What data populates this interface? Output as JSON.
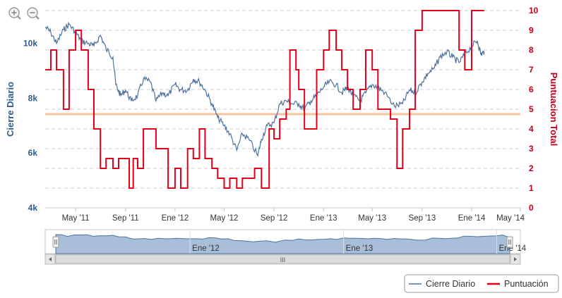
{
  "zoom_controls": {
    "zoom_in": "zoom-in",
    "zoom_out": "zoom-out"
  },
  "chart_data": {
    "type": "line",
    "title": "",
    "x_axis": {
      "type": "date",
      "range": [
        "2011-02-15",
        "2014-05-01"
      ],
      "tick_labels": [
        "May '11",
        "Sep '11",
        "Ene '12",
        "May '12",
        "Sep '12",
        "Ene '13",
        "May '13",
        "Sep '13",
        "Ene '14",
        "May '14"
      ],
      "tick_dates": [
        "2011-05-01",
        "2011-09-01",
        "2012-01-01",
        "2012-05-01",
        "2012-09-01",
        "2013-01-01",
        "2013-05-01",
        "2013-09-01",
        "2014-01-01",
        "2014-05-01"
      ]
    },
    "y_left": {
      "label": "Cierre Diario",
      "range": [
        4000,
        11200
      ],
      "ticks": [
        4000,
        6000,
        8000,
        10000
      ],
      "tick_labels": [
        "4k",
        "6k",
        "8k",
        "10k"
      ]
    },
    "y_right": {
      "label": "Puntuacion Total",
      "range": [
        0,
        10
      ],
      "ticks": [
        0,
        1,
        2,
        3,
        4,
        5,
        6,
        7,
        8,
        9,
        10
      ]
    },
    "grid": "dashed-horizontal",
    "threshold_line": {
      "axis": "right",
      "value": 4.75,
      "color": "#f4c39f"
    },
    "series": [
      {
        "name": "Cierre Diario",
        "axis": "left",
        "color": "#4c72a0",
        "points": [
          [
            "2011-02-15",
            10600
          ],
          [
            "2011-03-01",
            10400
          ],
          [
            "2011-03-15",
            10000
          ],
          [
            "2011-04-01",
            10500
          ],
          [
            "2011-04-15",
            10700
          ],
          [
            "2011-05-01",
            10400
          ],
          [
            "2011-05-15",
            10100
          ],
          [
            "2011-06-01",
            10000
          ],
          [
            "2011-06-15",
            9900
          ],
          [
            "2011-07-01",
            10300
          ],
          [
            "2011-07-15",
            9800
          ],
          [
            "2011-08-01",
            9500
          ],
          [
            "2011-08-08",
            8500
          ],
          [
            "2011-08-20",
            8100
          ],
          [
            "2011-09-01",
            8300
          ],
          [
            "2011-09-15",
            7900
          ],
          [
            "2011-10-01",
            8100
          ],
          [
            "2011-10-15",
            8700
          ],
          [
            "2011-11-01",
            8600
          ],
          [
            "2011-11-15",
            7900
          ],
          [
            "2011-12-01",
            8200
          ],
          [
            "2011-12-15",
            8100
          ],
          [
            "2012-01-01",
            8500
          ],
          [
            "2012-01-15",
            8300
          ],
          [
            "2012-02-01",
            8300
          ],
          [
            "2012-02-15",
            8700
          ],
          [
            "2012-03-01",
            8600
          ],
          [
            "2012-03-15",
            8300
          ],
          [
            "2012-04-01",
            7800
          ],
          [
            "2012-04-15",
            7300
          ],
          [
            "2012-05-01",
            7000
          ],
          [
            "2012-05-15",
            6700
          ],
          [
            "2012-06-01",
            6100
          ],
          [
            "2012-06-15",
            6700
          ],
          [
            "2012-07-01",
            6500
          ],
          [
            "2012-07-23",
            5900
          ],
          [
            "2012-08-01",
            6500
          ],
          [
            "2012-08-15",
            7000
          ],
          [
            "2012-09-01",
            7100
          ],
          [
            "2012-09-15",
            7800
          ],
          [
            "2012-10-01",
            7900
          ],
          [
            "2012-10-15",
            7800
          ],
          [
            "2012-11-01",
            7800
          ],
          [
            "2012-11-15",
            7600
          ],
          [
            "2012-12-01",
            7900
          ],
          [
            "2012-12-15",
            8100
          ],
          [
            "2013-01-01",
            8400
          ],
          [
            "2013-01-15",
            8600
          ],
          [
            "2013-02-01",
            8500
          ],
          [
            "2013-02-15",
            8200
          ],
          [
            "2013-03-01",
            8400
          ],
          [
            "2013-03-15",
            8100
          ],
          [
            "2013-04-01",
            7900
          ],
          [
            "2013-04-15",
            8200
          ],
          [
            "2013-05-01",
            8500
          ],
          [
            "2013-05-15",
            8400
          ],
          [
            "2013-06-01",
            8200
          ],
          [
            "2013-06-25",
            7700
          ],
          [
            "2013-07-15",
            7800
          ],
          [
            "2013-08-01",
            8300
          ],
          [
            "2013-08-15",
            8200
          ],
          [
            "2013-09-01",
            8600
          ],
          [
            "2013-09-15",
            8900
          ],
          [
            "2013-10-01",
            9100
          ],
          [
            "2013-10-15",
            9500
          ],
          [
            "2013-11-01",
            9700
          ],
          [
            "2013-11-15",
            9500
          ],
          [
            "2013-12-01",
            9300
          ],
          [
            "2013-12-15",
            9600
          ],
          [
            "2014-01-01",
            9900
          ],
          [
            "2014-01-15",
            10100
          ],
          [
            "2014-01-24",
            9600
          ],
          [
            "2014-02-01",
            9700
          ]
        ]
      },
      {
        "name": "Puntuación",
        "axis": "right",
        "color": "#e2001a",
        "steps": [
          [
            "2011-02-15",
            7
          ],
          [
            "2011-03-01",
            8
          ],
          [
            "2011-03-15",
            7
          ],
          [
            "2011-04-01",
            5
          ],
          [
            "2011-04-15",
            8
          ],
          [
            "2011-05-01",
            9
          ],
          [
            "2011-05-15",
            8
          ],
          [
            "2011-06-01",
            6
          ],
          [
            "2011-06-15",
            4
          ],
          [
            "2011-07-01",
            2
          ],
          [
            "2011-07-15",
            2.5
          ],
          [
            "2011-08-01",
            2
          ],
          [
            "2011-08-15",
            2.5
          ],
          [
            "2011-09-01",
            2.5
          ],
          [
            "2011-09-10",
            1
          ],
          [
            "2011-09-20",
            2.5
          ],
          [
            "2011-10-01",
            2
          ],
          [
            "2011-10-15",
            4
          ],
          [
            "2011-11-01",
            4
          ],
          [
            "2011-11-15",
            3
          ],
          [
            "2011-12-01",
            3
          ],
          [
            "2011-12-15",
            1
          ],
          [
            "2012-01-01",
            2
          ],
          [
            "2012-01-15",
            1
          ],
          [
            "2012-02-01",
            3
          ],
          [
            "2012-02-15",
            2.5
          ],
          [
            "2012-03-01",
            4
          ],
          [
            "2012-03-15",
            2.5
          ],
          [
            "2012-04-01",
            2
          ],
          [
            "2012-04-15",
            1.5
          ],
          [
            "2012-05-01",
            1
          ],
          [
            "2012-05-15",
            1.5
          ],
          [
            "2012-06-01",
            1
          ],
          [
            "2012-06-15",
            1.5
          ],
          [
            "2012-07-01",
            1.5
          ],
          [
            "2012-07-15",
            2
          ],
          [
            "2012-08-01",
            1
          ],
          [
            "2012-08-20",
            4
          ],
          [
            "2012-09-01",
            3.5
          ],
          [
            "2012-09-15",
            4.5
          ],
          [
            "2012-10-01",
            5
          ],
          [
            "2012-10-10",
            8
          ],
          [
            "2012-10-25",
            7
          ],
          [
            "2012-11-01",
            6
          ],
          [
            "2012-11-15",
            4
          ],
          [
            "2012-12-01",
            4
          ],
          [
            "2012-12-15",
            7
          ],
          [
            "2013-01-01",
            8
          ],
          [
            "2013-01-15",
            9
          ],
          [
            "2013-02-01",
            8
          ],
          [
            "2013-02-15",
            7
          ],
          [
            "2013-03-01",
            6
          ],
          [
            "2013-03-15",
            5
          ],
          [
            "2013-04-01",
            6
          ],
          [
            "2013-04-15",
            8
          ],
          [
            "2013-05-01",
            7
          ],
          [
            "2013-05-15",
            5
          ],
          [
            "2013-06-01",
            5
          ],
          [
            "2013-06-15",
            4.5
          ],
          [
            "2013-07-01",
            2
          ],
          [
            "2013-07-15",
            4
          ],
          [
            "2013-08-01",
            5
          ],
          [
            "2013-08-15",
            9
          ],
          [
            "2013-09-01",
            10
          ],
          [
            "2013-10-01",
            10
          ],
          [
            "2013-11-01",
            10
          ],
          [
            "2013-11-15",
            10
          ],
          [
            "2013-12-01",
            8
          ],
          [
            "2013-12-15",
            7
          ],
          [
            "2014-01-01",
            10
          ],
          [
            "2014-02-01",
            10
          ]
        ]
      }
    ],
    "legend": {
      "placement": "bottom-right",
      "entries": [
        "Cierre Diario",
        "Puntuación"
      ]
    },
    "navigator": {
      "tick_labels": [
        "Ene '12",
        "Ene '13",
        "Ene '14"
      ],
      "tick_dates": [
        "2012-01-01",
        "2013-01-01",
        "2014-01-01"
      ],
      "scrollbar_grip": "III"
    }
  }
}
